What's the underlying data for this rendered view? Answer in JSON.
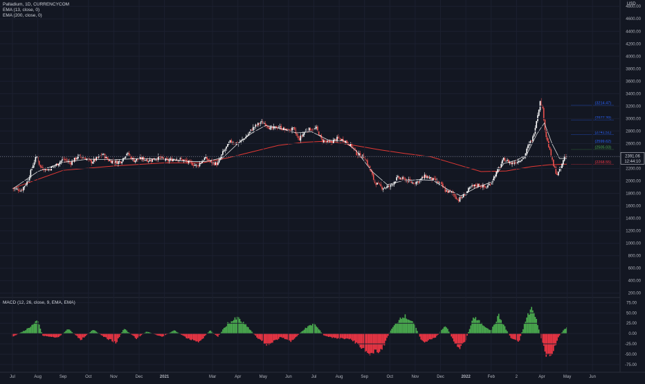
{
  "header": {
    "symbol_line": "Palladium, 1D, CURRENCYCOM",
    "ema_short": "EMA (13, close, 0)",
    "ema_long": "EMA (200, close, 0)",
    "currency": "USD"
  },
  "macd_panel": {
    "title": "MACD (12, 26, close, 9, EMA, EMA)"
  },
  "colors": {
    "background": "#131722",
    "up": "#26a69a",
    "down": "#ef5350",
    "candle_up": "#ffffff",
    "candle_down": "#ef5350",
    "ema_short": "#ffffff",
    "ema_long": "#e53935",
    "hist_pos": "#4caf50",
    "hist_neg": "#f23645",
    "level_blue": "#2962ff",
    "level_green": "#4caf50",
    "level_red": "#f23645"
  },
  "chart_data": {
    "type": "candlestick",
    "symbol": "Palladium",
    "interval": "1D",
    "exchange": "CURRENCYCOM",
    "price_axis": {
      "ticks": [
        "4800.00",
        "4600.00",
        "4400.00",
        "4200.00",
        "4000.00",
        "3800.00",
        "3600.00",
        "3400.00",
        "3200.00",
        "3000.00",
        "2800.00",
        "2600.00",
        "2400.00",
        "2200.00",
        "2000.00",
        "1800.00",
        "1600.00",
        "1400.00",
        "1200.00",
        "1000.00",
        "800.00",
        "600.00",
        "400.00",
        "200.00"
      ],
      "range": [
        130,
        4880
      ]
    },
    "macd_axis": {
      "ticks": [
        "75.00",
        "50.00",
        "25.00",
        "0.00",
        "-25.00",
        "-50.00",
        "-75.00"
      ],
      "range": [
        -92,
        84
      ]
    },
    "time_axis": {
      "labels": [
        "Jul",
        "Aug",
        "Sep",
        "Oct",
        "Nov",
        "Dec",
        "2021",
        "Mar",
        "Apr",
        "May",
        "Jun",
        "Jul",
        "Aug",
        "Sep",
        "Oct",
        "Nov",
        "Dec",
        "2022",
        "Feb",
        "2",
        "Apr",
        "May",
        "Jun"
      ],
      "positions": [
        0.0,
        1.0,
        2.0,
        3.0,
        4.0,
        5.0,
        6.0,
        7.9,
        8.9,
        9.9,
        10.9,
        11.9,
        12.9,
        13.9,
        14.9,
        15.9,
        16.9,
        17.9,
        18.9,
        19.9,
        20.9,
        21.9,
        22.9
      ],
      "last_candle_month": 21.2
    },
    "last_price": {
      "value": "2391.06",
      "countdown": "12:44:10",
      "level": 2391
    },
    "levels": [
      {
        "label": "(3214.47)",
        "value": 3214.47,
        "color": "blue"
      },
      {
        "label": "(2977.39)",
        "value": 2977.39,
        "color": "blue"
      },
      {
        "label": "(2741.51)",
        "value": 2741.51,
        "color": "blue"
      },
      {
        "label": "(2599.62)",
        "value": 2599.62,
        "color": "blue"
      },
      {
        "label": "(2505.03)",
        "value": 2505.03,
        "color": "green"
      },
      {
        "label": "(2268.55)",
        "value": 2268.55,
        "color": "red"
      }
    ],
    "price_path": [
      [
        0.0,
        1880
      ],
      [
        0.35,
        1850
      ],
      [
        0.6,
        2000
      ],
      [
        0.8,
        2250
      ],
      [
        0.95,
        2400
      ],
      [
        1.1,
        2220
      ],
      [
        1.4,
        2180
      ],
      [
        1.7,
        2250
      ],
      [
        2.0,
        2350
      ],
      [
        2.3,
        2290
      ],
      [
        2.6,
        2400
      ],
      [
        2.9,
        2360
      ],
      [
        3.1,
        2300
      ],
      [
        3.3,
        2350
      ],
      [
        3.55,
        2430
      ],
      [
        3.8,
        2330
      ],
      [
        4.1,
        2300
      ],
      [
        4.3,
        2320
      ],
      [
        4.5,
        2450
      ],
      [
        4.8,
        2330
      ],
      [
        5.1,
        2360
      ],
      [
        5.4,
        2330
      ],
      [
        5.8,
        2380
      ],
      [
        6.1,
        2320
      ],
      [
        6.4,
        2360
      ],
      [
        6.7,
        2340
      ],
      [
        7.0,
        2290
      ],
      [
        7.3,
        2240
      ],
      [
        7.6,
        2370
      ],
      [
        7.9,
        2290
      ],
      [
        8.1,
        2270
      ],
      [
        8.3,
        2450
      ],
      [
        8.6,
        2630
      ],
      [
        8.9,
        2600
      ],
      [
        9.2,
        2700
      ],
      [
        9.5,
        2850
      ],
      [
        9.8,
        2940
      ],
      [
        10.0,
        2920
      ],
      [
        10.2,
        2830
      ],
      [
        10.5,
        2870
      ],
      [
        10.8,
        2810
      ],
      [
        11.1,
        2830
      ],
      [
        11.3,
        2660
      ],
      [
        11.6,
        2820
      ],
      [
        12.0,
        2840
      ],
      [
        12.2,
        2660
      ],
      [
        12.5,
        2600
      ],
      [
        12.8,
        2680
      ],
      [
        13.1,
        2650
      ],
      [
        13.4,
        2560
      ],
      [
        13.6,
        2430
      ],
      [
        13.9,
        2380
      ],
      [
        14.1,
        2200
      ],
      [
        14.3,
        1980
      ],
      [
        14.6,
        1890
      ],
      [
        14.9,
        1910
      ],
      [
        15.2,
        2050
      ],
      [
        15.5,
        2020
      ],
      [
        15.8,
        1970
      ],
      [
        16.0,
        1990
      ],
      [
        16.3,
        2080
      ],
      [
        16.6,
        2020
      ],
      [
        16.9,
        1950
      ],
      [
        17.1,
        1840
      ],
      [
        17.4,
        1800
      ],
      [
        17.6,
        1690
      ],
      [
        17.8,
        1760
      ],
      [
        18.1,
        1900
      ],
      [
        18.4,
        1940
      ],
      [
        18.7,
        1890
      ],
      [
        18.9,
        1980
      ],
      [
        19.2,
        2200
      ],
      [
        19.4,
        2350
      ],
      [
        19.7,
        2280
      ],
      [
        20.0,
        2330
      ],
      [
        20.2,
        2380
      ],
      [
        20.35,
        2550
      ],
      [
        20.55,
        2700
      ],
      [
        20.7,
        3000
      ],
      [
        20.85,
        3300
      ],
      [
        20.95,
        3100
      ],
      [
        21.05,
        2750
      ],
      [
        21.2,
        2500
      ],
      [
        21.35,
        2250
      ],
      [
        21.5,
        2100
      ],
      [
        21.65,
        2200
      ],
      [
        21.8,
        2400
      ],
      [
        21.9,
        2391.06
      ]
    ],
    "ema13_path": [
      [
        0.0,
        1870
      ],
      [
        1.0,
        2150
      ],
      [
        2.0,
        2300
      ],
      [
        3.0,
        2350
      ],
      [
        4.0,
        2340
      ],
      [
        5.0,
        2360
      ],
      [
        6.0,
        2350
      ],
      [
        7.0,
        2310
      ],
      [
        7.6,
        2310
      ],
      [
        8.3,
        2370
      ],
      [
        8.9,
        2600
      ],
      [
        9.5,
        2780
      ],
      [
        10.0,
        2890
      ],
      [
        10.6,
        2840
      ],
      [
        11.2,
        2770
      ],
      [
        11.8,
        2790
      ],
      [
        12.5,
        2650
      ],
      [
        13.1,
        2640
      ],
      [
        13.6,
        2470
      ],
      [
        14.2,
        2150
      ],
      [
        14.8,
        1940
      ],
      [
        15.4,
        2000
      ],
      [
        16.0,
        2020
      ],
      [
        16.6,
        2010
      ],
      [
        17.2,
        1860
      ],
      [
        17.7,
        1760
      ],
      [
        18.3,
        1890
      ],
      [
        18.9,
        1980
      ],
      [
        19.4,
        2280
      ],
      [
        19.9,
        2330
      ],
      [
        20.3,
        2420
      ],
      [
        20.7,
        2750
      ],
      [
        21.0,
        2930
      ],
      [
        21.3,
        2600
      ],
      [
        21.6,
        2360
      ],
      [
        21.9,
        2360
      ]
    ],
    "ema200_path": [
      [
        0.0,
        1880
      ],
      [
        2.0,
        2170
      ],
      [
        4.0,
        2240
      ],
      [
        6.0,
        2290
      ],
      [
        7.5,
        2290
      ],
      [
        8.5,
        2370
      ],
      [
        9.5,
        2470
      ],
      [
        10.5,
        2570
      ],
      [
        11.5,
        2620
      ],
      [
        12.5,
        2640
      ],
      [
        13.5,
        2570
      ],
      [
        14.5,
        2500
      ],
      [
        15.5,
        2440
      ],
      [
        16.5,
        2390
      ],
      [
        17.5,
        2270
      ],
      [
        18.5,
        2150
      ],
      [
        19.5,
        2160
      ],
      [
        20.5,
        2230
      ],
      [
        21.2,
        2260
      ],
      [
        21.9,
        2268.55
      ]
    ],
    "macd_hist_path": [
      [
        0.0,
        -8
      ],
      [
        0.5,
        8
      ],
      [
        1.0,
        30
      ],
      [
        1.2,
        -5
      ],
      [
        1.8,
        -10
      ],
      [
        2.2,
        12
      ],
      [
        2.7,
        -15
      ],
      [
        3.2,
        10
      ],
      [
        3.6,
        -8
      ],
      [
        4.1,
        -22
      ],
      [
        4.4,
        12
      ],
      [
        4.9,
        -12
      ],
      [
        5.3,
        5
      ],
      [
        5.9,
        -8
      ],
      [
        6.4,
        8
      ],
      [
        6.9,
        -12
      ],
      [
        7.4,
        -20
      ],
      [
        7.8,
        8
      ],
      [
        8.1,
        -8
      ],
      [
        8.5,
        25
      ],
      [
        8.9,
        38
      ],
      [
        9.3,
        15
      ],
      [
        9.7,
        -12
      ],
      [
        10.1,
        -28
      ],
      [
        10.6,
        -8
      ],
      [
        11.0,
        -20
      ],
      [
        11.5,
        10
      ],
      [
        11.9,
        25
      ],
      [
        12.3,
        -5
      ],
      [
        12.8,
        -12
      ],
      [
        13.3,
        -12
      ],
      [
        13.7,
        -28
      ],
      [
        14.1,
        -50
      ],
      [
        14.6,
        -38
      ],
      [
        14.9,
        5
      ],
      [
        15.4,
        45
      ],
      [
        15.8,
        30
      ],
      [
        16.2,
        -22
      ],
      [
        16.7,
        -10
      ],
      [
        17.1,
        20
      ],
      [
        17.6,
        -38
      ],
      [
        17.9,
        -15
      ],
      [
        18.2,
        40
      ],
      [
        18.6,
        20
      ],
      [
        18.9,
        8
      ],
      [
        19.2,
        43
      ],
      [
        19.4,
        20
      ],
      [
        19.7,
        -12
      ],
      [
        20.0,
        -18
      ],
      [
        20.3,
        38
      ],
      [
        20.5,
        63
      ],
      [
        20.7,
        30
      ],
      [
        20.9,
        -15
      ],
      [
        21.1,
        -60
      ],
      [
        21.3,
        -50
      ],
      [
        21.55,
        -10
      ],
      [
        21.75,
        8
      ],
      [
        21.9,
        14
      ]
    ]
  }
}
